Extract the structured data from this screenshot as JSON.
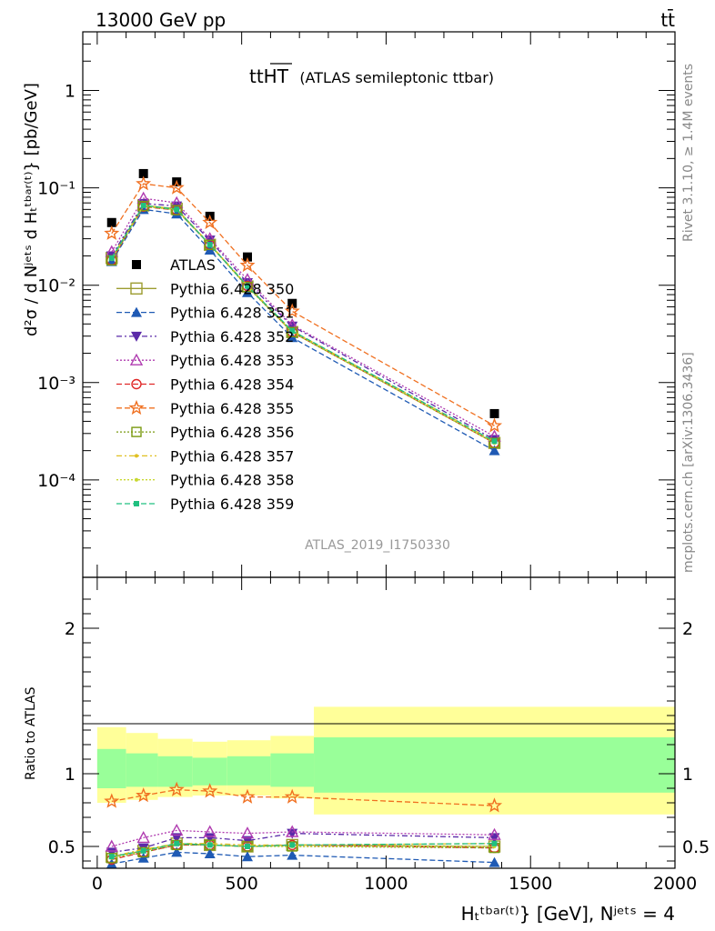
{
  "header": {
    "energy_label": "13000 GeV pp",
    "process_label": "tt̄"
  },
  "side_text": {
    "rivet": "Rivet 3.1.10, ≥ 1.4M events",
    "mcplots": "mcplots.cern.ch [arXiv:1306.3436]"
  },
  "plot_title": {
    "main": "ttHT",
    "sub": "(ATLAS semileptonic ttbar)"
  },
  "analysis_id": "ATLAS_2019_I1750330",
  "y_label_top": "d²σ / d Nʲᵉᵗˢ d Hₜᵗᵇᵃʳ⁽ᵗ⁾} [pb/GeV]",
  "y_label_ratio": "Ratio to ATLAS",
  "x_label": "Hₜᵗᵇᵃʳ⁽ᵗ⁾} [GeV], Nʲᵉᵗˢ = 4",
  "chart_data": [
    {
      "type": "line",
      "panel": "main",
      "y_scale": "log",
      "xlim": [
        -50,
        2000
      ],
      "ylim": [
        1e-05,
        4
      ],
      "y_ticks": [
        "10⁻⁴",
        "10⁻³",
        "10⁻²",
        "10⁻¹",
        "1"
      ],
      "y_tick_values": [
        0.0001,
        0.001,
        0.01,
        0.1,
        1
      ],
      "x": [
        50,
        160,
        275,
        390,
        520,
        675,
        1375
      ],
      "legend_position": "middle-left",
      "series": [
        {
          "name": "ATLAS",
          "color": "#000000",
          "marker": "filled-square",
          "dash": "none",
          "values": [
            0.044,
            0.14,
            0.115,
            0.051,
            0.0195,
            0.0065,
            0.00048
          ]
        },
        {
          "name": "Pythia 6.428 350",
          "color": "#9c9c30",
          "marker": "open-square-large",
          "dash": "solid",
          "values": [
            0.019,
            0.066,
            0.061,
            0.026,
            0.0097,
            0.0033,
            0.00024
          ]
        },
        {
          "name": "Pythia 6.428 351",
          "color": "#1f5ab4",
          "marker": "triangle-up",
          "dash": "6,3",
          "values": [
            0.0175,
            0.06,
            0.054,
            0.023,
            0.0084,
            0.0029,
            0.0002
          ]
        },
        {
          "name": "Pythia 6.428 352",
          "color": "#5a2aa8",
          "marker": "triangle-down",
          "dash": "6,3,2,3",
          "values": [
            0.02,
            0.069,
            0.065,
            0.029,
            0.0106,
            0.0038,
            0.00026
          ]
        },
        {
          "name": "Pythia 6.428 353",
          "color": "#b03cb0",
          "marker": "open-triangle",
          "dash": "2,2",
          "values": [
            0.022,
            0.078,
            0.07,
            0.03,
            0.0114,
            0.0039,
            0.00028
          ]
        },
        {
          "name": "Pythia 6.428 354",
          "color": "#e02828",
          "marker": "open-circle",
          "dash": "6,3",
          "values": [
            0.018,
            0.064,
            0.059,
            0.026,
            0.0098,
            0.0033,
            0.00024
          ]
        },
        {
          "name": "Pythia 6.428 355",
          "color": "#f07020",
          "marker": "open-star",
          "dash": "6,3",
          "values": [
            0.034,
            0.11,
            0.1,
            0.044,
            0.016,
            0.0054,
            0.00036
          ]
        },
        {
          "name": "Pythia 6.428 356",
          "color": "#7a9a10",
          "marker": "open-square",
          "dash": "2,2",
          "values": [
            0.018,
            0.065,
            0.059,
            0.026,
            0.0096,
            0.0033,
            0.00024
          ]
        },
        {
          "name": "Pythia 6.428 357",
          "color": "#e0c020",
          "marker": "small-dot",
          "dash": "6,3,2,3",
          "values": [
            0.019,
            0.066,
            0.06,
            0.0265,
            0.0099,
            0.0034,
            0.00025
          ]
        },
        {
          "name": "Pythia 6.428 358",
          "color": "#c8d830",
          "marker": "small-dot",
          "dash": "2,2",
          "values": [
            0.0185,
            0.065,
            0.0595,
            0.026,
            0.0097,
            0.0033,
            0.00024
          ]
        },
        {
          "name": "Pythia 6.428 359",
          "color": "#20c080",
          "marker": "filled-square-small",
          "dash": "6,3",
          "values": [
            0.019,
            0.066,
            0.06,
            0.026,
            0.0098,
            0.0034,
            0.00025
          ]
        }
      ]
    },
    {
      "type": "line",
      "panel": "ratio",
      "xlim": [
        -50,
        2000
      ],
      "ylim": [
        0.35,
        2.35
      ],
      "y_ticks": [
        "0.5",
        "1",
        "2"
      ],
      "y_tick_values": [
        0.5,
        1,
        2
      ],
      "x_ticks": [
        "0",
        "500",
        "1000",
        "1500",
        "2000"
      ],
      "x_tick_values": [
        0,
        500,
        1000,
        1500,
        2000
      ],
      "bands": {
        "bin_edges": [
          0,
          100,
          210,
          330,
          450,
          600,
          750,
          2000
        ],
        "yellow_low": [
          0.8,
          0.82,
          0.84,
          0.85,
          0.85,
          0.83,
          0.72
        ],
        "yellow_high": [
          1.32,
          1.28,
          1.24,
          1.22,
          1.23,
          1.26,
          1.46
        ],
        "green_low": [
          0.9,
          0.91,
          0.91,
          0.92,
          0.92,
          0.91,
          0.87
        ],
        "green_high": [
          1.17,
          1.14,
          1.12,
          1.11,
          1.12,
          1.14,
          1.25
        ]
      },
      "x": [
        50,
        160,
        275,
        390,
        520,
        675,
        1375
      ],
      "series": [
        {
          "name": "Pythia 6.428 350",
          "values": [
            0.43,
            0.47,
            0.52,
            0.51,
            0.5,
            0.51,
            0.5
          ]
        },
        {
          "name": "Pythia 6.428 351",
          "values": [
            0.38,
            0.42,
            0.46,
            0.45,
            0.43,
            0.44,
            0.39
          ]
        },
        {
          "name": "Pythia 6.428 352",
          "values": [
            0.46,
            0.49,
            0.56,
            0.56,
            0.54,
            0.59,
            0.56
          ]
        },
        {
          "name": "Pythia 6.428 353",
          "values": [
            0.5,
            0.56,
            0.61,
            0.6,
            0.59,
            0.6,
            0.58
          ]
        },
        {
          "name": "Pythia 6.428 354",
          "values": [
            0.41,
            0.46,
            0.51,
            0.51,
            0.5,
            0.51,
            0.49
          ]
        },
        {
          "name": "Pythia 6.428 355",
          "values": [
            0.81,
            0.85,
            0.89,
            0.88,
            0.84,
            0.84,
            0.78
          ]
        },
        {
          "name": "Pythia 6.428 356",
          "values": [
            0.42,
            0.46,
            0.51,
            0.51,
            0.5,
            0.5,
            0.49
          ]
        },
        {
          "name": "Pythia 6.428 357",
          "values": [
            0.43,
            0.48,
            0.52,
            0.52,
            0.51,
            0.51,
            0.52
          ]
        },
        {
          "name": "Pythia 6.428 358",
          "values": [
            0.42,
            0.47,
            0.52,
            0.51,
            0.5,
            0.5,
            0.5
          ]
        },
        {
          "name": "Pythia 6.428 359",
          "values": [
            0.43,
            0.47,
            0.52,
            0.51,
            0.5,
            0.51,
            0.52
          ]
        }
      ]
    }
  ]
}
